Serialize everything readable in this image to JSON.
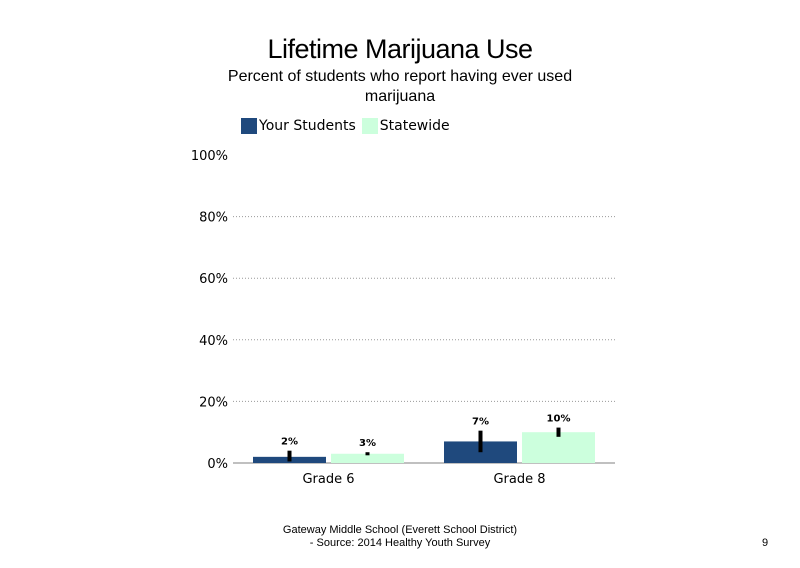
{
  "chart_data": {
    "type": "bar",
    "title": "Lifetime Marijuana Use",
    "subtitle": "Percent of students  who report having ever used marijuana",
    "categories": [
      "Grade 6",
      "Grade 8"
    ],
    "series": [
      {
        "name": "Your Students",
        "values": [
          2,
          7
        ],
        "labels": [
          "2%",
          "7%"
        ],
        "error": [
          [
            0.5,
            4
          ],
          [
            3.5,
            10.5
          ]
        ],
        "color": "#1f497d"
      },
      {
        "name": "Statewide",
        "values": [
          3,
          10
        ],
        "labels": [
          "3%",
          "10%"
        ],
        "error": [
          [
            2.5,
            3.5
          ],
          [
            8.5,
            11.5
          ]
        ],
        "color": "#ccffdd"
      }
    ],
    "yticks": [
      "0%",
      "20%",
      "40%",
      "60%",
      "80%",
      "100%"
    ],
    "ylim": [
      0,
      100
    ],
    "grid": true,
    "legend": "top-left"
  },
  "footer": {
    "line1": "Gateway Middle  School  (Everett School District)",
    "line2": "- Source: 2014 Healthy  Youth Survey"
  },
  "page_number": "9"
}
